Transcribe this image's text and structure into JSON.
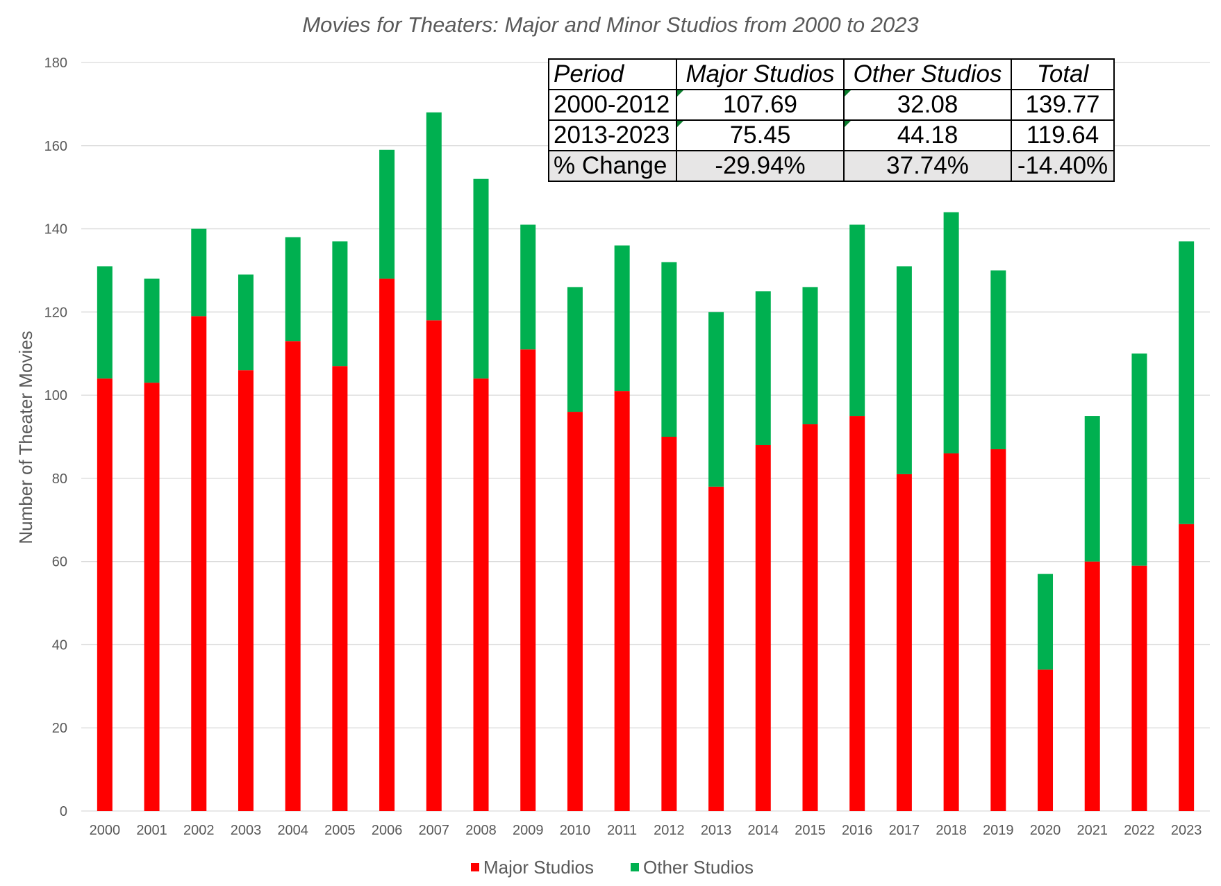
{
  "chart_data": {
    "type": "bar",
    "stacked": true,
    "title": "Movies for Theaters: Major and Minor Studios from 2000 to 2023",
    "ylabel": "Number of Theater Movies",
    "xlabel": "",
    "ylim": [
      0,
      180
    ],
    "yticks": [
      0,
      20,
      40,
      60,
      80,
      100,
      120,
      140,
      160,
      180
    ],
    "grid": true,
    "legend_position": "bottom",
    "categories": [
      "2000",
      "2001",
      "2002",
      "2003",
      "2004",
      "2005",
      "2006",
      "2007",
      "2008",
      "2009",
      "2010",
      "2011",
      "2012",
      "2013",
      "2014",
      "2015",
      "2016",
      "2017",
      "2018",
      "2019",
      "2020",
      "2021",
      "2022",
      "2023"
    ],
    "series": [
      {
        "name": "Major Studios",
        "color": "#ff0000",
        "values": [
          104,
          103,
          119,
          106,
          113,
          107,
          128,
          118,
          104,
          111,
          96,
          101,
          90,
          78,
          88,
          93,
          95,
          81,
          86,
          87,
          34,
          60,
          59,
          69
        ]
      },
      {
        "name": "Other Studios",
        "color": "#00b050",
        "values": [
          27,
          25,
          21,
          23,
          25,
          30,
          31,
          50,
          48,
          30,
          30,
          35,
          42,
          42,
          37,
          33,
          46,
          50,
          58,
          43,
          23,
          35,
          51,
          68
        ]
      }
    ]
  },
  "summary_table": {
    "headers": [
      "Period",
      "Major Studios",
      "Other Studios",
      "Total"
    ],
    "rows": [
      [
        "2000-2012",
        "107.69",
        "32.08",
        "139.77"
      ],
      [
        "2013-2023",
        "75.45",
        "44.18",
        "119.64"
      ],
      [
        "% Change",
        "-29.94%",
        "37.74%",
        "-14.40%"
      ]
    ]
  }
}
